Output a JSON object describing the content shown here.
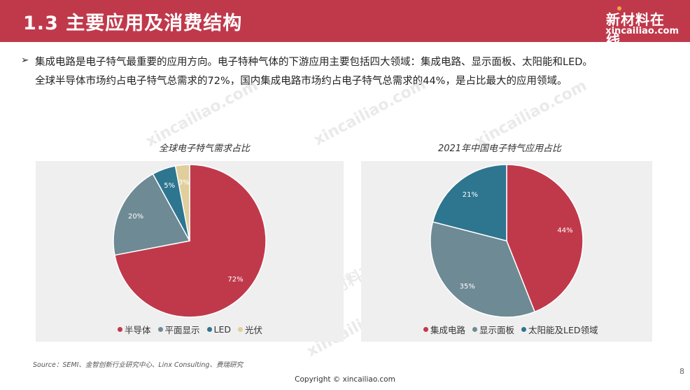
{
  "header": {
    "title": "1.3 主要应用及消费结构",
    "brand_name": "新材料在线",
    "brand_url": "xincailiao.com"
  },
  "intro": {
    "bullet": "➢",
    "line1": "集成电路是电子特气最重要的应用方向。电子特种气体的下游应用主要包括四大领域：集成电路、显示面板、太阳能和LED。",
    "line2": "全球半导体市场约占电子特气总需求的72%，国内集成电路市场约占电子特气总需求的44%，是占比最大的应用领域。"
  },
  "watermarks": [
    "新材料在线",
    "xincailiao.com"
  ],
  "chart_data": [
    {
      "type": "pie",
      "title": "全球电子特气需求占比",
      "categories": [
        "半导体",
        "平面显示",
        "LED",
        "光伏"
      ],
      "values": [
        72,
        20,
        5,
        3
      ],
      "labels": [
        "72%",
        "20%",
        "5%",
        "3%"
      ],
      "colors": [
        "#c0394b",
        "#6e8a94",
        "#2e7590",
        "#e0cf9c"
      ],
      "legend_position": "bottom"
    },
    {
      "type": "pie",
      "title": "2021年中国电子特气应用占比",
      "categories": [
        "集成电路",
        "显示面板",
        "太阳能及LED领域"
      ],
      "values": [
        44,
        35,
        21
      ],
      "labels": [
        "44%",
        "35%",
        "21%"
      ],
      "colors": [
        "#c0394b",
        "#6e8a94",
        "#2e7590"
      ],
      "legend_position": "bottom"
    }
  ],
  "footer": {
    "source": "Source：SEMI、金智创新行业研究中心、Linx Consulting、费瑞研究",
    "copyright": "Copyright © xincailiao.com",
    "page_number": "8"
  }
}
